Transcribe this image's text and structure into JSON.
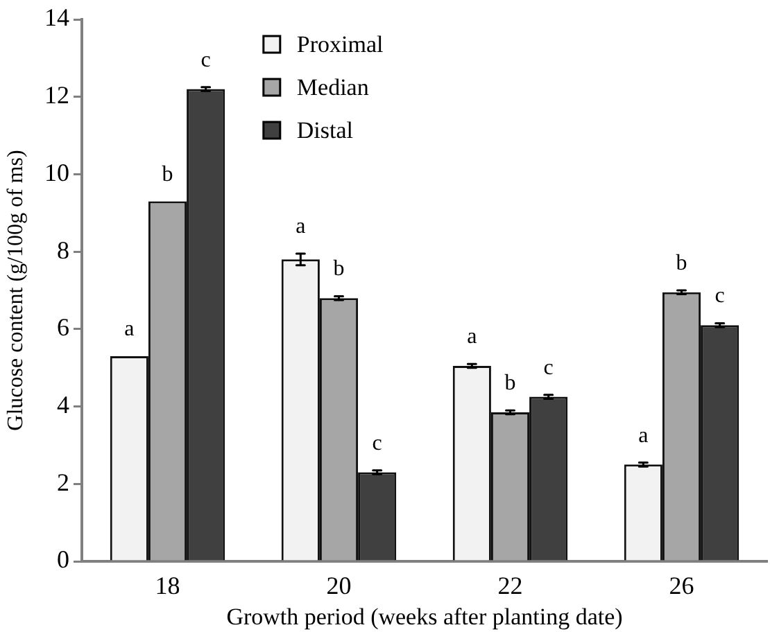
{
  "chart_data": {
    "type": "bar",
    "xlabel": "Growth period (weeks after planting date)",
    "ylabel": "Glucose content (g/100g of ms)",
    "categories": [
      "18",
      "20",
      "22",
      "26"
    ],
    "series": [
      {
        "name": "Proximal",
        "color": "#f2f2f2",
        "values": [
          5.3,
          7.8,
          5.05,
          2.5
        ],
        "errors": [
          null,
          0.15,
          0.05,
          0.05
        ],
        "value_labels": [
          "a",
          "a",
          "a",
          "a"
        ]
      },
      {
        "name": "Median",
        "color": "#a6a6a6",
        "values": [
          9.3,
          6.8,
          3.85,
          6.95
        ],
        "errors": [
          null,
          0.05,
          0.05,
          0.05
        ],
        "value_labels": [
          "b",
          "b",
          "b",
          "b"
        ]
      },
      {
        "name": "Distal",
        "color": "#404040",
        "values": [
          12.2,
          2.3,
          4.25,
          6.1
        ],
        "errors": [
          0.05,
          0.05,
          0.05,
          0.05
        ],
        "value_labels": [
          "c",
          "c",
          "c",
          "c"
        ]
      }
    ],
    "ylim": [
      0,
      14
    ],
    "yticks": [
      0,
      2,
      4,
      6,
      8,
      10,
      12,
      14
    ],
    "legend": "top left"
  }
}
